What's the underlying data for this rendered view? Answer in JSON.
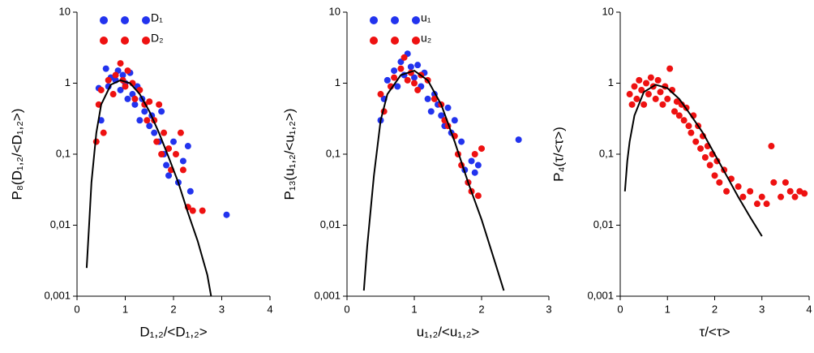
{
  "chart_data": [
    {
      "type": "scatter",
      "xlabel": "D₁,₂/<D₁,₂>",
      "ylabel": "P₈(D₁,₂/<D₁,₂>)",
      "xlim": [
        0,
        4
      ],
      "xticks": [
        0,
        1,
        2,
        3,
        4
      ],
      "ylim": [
        0.001,
        10
      ],
      "ylog": true,
      "yticks": [
        {
          "value": 0.001,
          "label": "0,001"
        },
        {
          "value": 0.01,
          "label": "0,01"
        },
        {
          "value": 0.1,
          "label": "0,1"
        },
        1,
        10
      ],
      "legend": "upper left",
      "series": [
        {
          "name": "D₁",
          "color": "#2233ee",
          "x": [
            0.45,
            0.5,
            0.6,
            0.65,
            0.7,
            0.8,
            0.85,
            0.9,
            0.95,
            1.0,
            1.05,
            1.1,
            1.15,
            1.2,
            1.25,
            1.3,
            1.35,
            1.4,
            1.5,
            1.55,
            1.6,
            1.7,
            1.75,
            1.8,
            1.85,
            1.9,
            2.0,
            2.1,
            2.2,
            2.3,
            2.35,
            3.1
          ],
          "values": [
            0.85,
            0.3,
            1.6,
            0.9,
            1.2,
            1.1,
            1.5,
            0.8,
            1.3,
            1.0,
            0.6,
            1.4,
            0.7,
            0.5,
            0.9,
            0.3,
            0.6,
            0.4,
            0.25,
            0.35,
            0.2,
            0.15,
            0.4,
            0.1,
            0.07,
            0.05,
            0.15,
            0.04,
            0.08,
            0.13,
            0.03,
            0.014
          ]
        },
        {
          "name": "D₂",
          "color": "#ee1111",
          "x": [
            0.4,
            0.45,
            0.5,
            0.55,
            0.65,
            0.75,
            0.8,
            0.9,
            0.95,
            1.0,
            1.05,
            1.15,
            1.2,
            1.3,
            1.4,
            1.45,
            1.5,
            1.6,
            1.65,
            1.7,
            1.75,
            1.8,
            1.9,
            1.95,
            2.05,
            2.15,
            2.2,
            2.3,
            2.4,
            2.6
          ],
          "values": [
            0.15,
            0.5,
            0.8,
            0.2,
            1.1,
            0.7,
            1.3,
            1.9,
            1.1,
            0.9,
            1.5,
            1.0,
            0.6,
            0.8,
            0.5,
            0.3,
            0.55,
            0.3,
            0.15,
            0.5,
            0.1,
            0.2,
            0.12,
            0.06,
            0.1,
            0.2,
            0.06,
            0.018,
            0.016,
            0.016
          ]
        },
        {
          "type": "line",
          "color": "#000000",
          "x": [
            0.2,
            0.25,
            0.3,
            0.4,
            0.5,
            0.7,
            0.9,
            1.1,
            1.3,
            1.5,
            1.7,
            1.9,
            2.1,
            2.3,
            2.5,
            2.7,
            2.78
          ],
          "values": [
            0.0025,
            0.01,
            0.04,
            0.2,
            0.5,
            0.95,
            1.1,
            1.0,
            0.7,
            0.4,
            0.2,
            0.09,
            0.04,
            0.015,
            0.006,
            0.002,
            0.001
          ]
        }
      ]
    },
    {
      "type": "scatter",
      "xlabel": "u₁,₂/<u₁,₂>",
      "ylabel": "P₁₃(u₁,₂/<u₁,₂>)",
      "xlim": [
        0,
        3
      ],
      "xticks": [
        0,
        1,
        2,
        3
      ],
      "ylim": [
        0.001,
        10
      ],
      "ylog": true,
      "yticks": [
        {
          "value": 0.001,
          "label": "0,001"
        },
        {
          "value": 0.01,
          "label": "0,01"
        },
        {
          "value": 0.1,
          "label": "0,1"
        },
        1,
        10
      ],
      "legend": "upper left",
      "series": [
        {
          "name": "u₁",
          "color": "#2233ee",
          "x": [
            0.5,
            0.55,
            0.6,
            0.7,
            0.75,
            0.8,
            0.85,
            0.9,
            0.95,
            1.0,
            1.05,
            1.1,
            1.15,
            1.2,
            1.25,
            1.3,
            1.35,
            1.4,
            1.45,
            1.5,
            1.55,
            1.6,
            1.7,
            1.75,
            1.8,
            1.85,
            1.9,
            1.95,
            2.55
          ],
          "values": [
            0.3,
            0.6,
            1.1,
            1.5,
            0.9,
            2.0,
            1.3,
            2.6,
            1.7,
            1.2,
            1.8,
            0.9,
            1.4,
            0.6,
            0.4,
            0.7,
            0.5,
            0.35,
            0.25,
            0.45,
            0.2,
            0.3,
            0.15,
            0.06,
            0.04,
            0.08,
            0.055,
            0.07,
            0.16
          ]
        },
        {
          "name": "u₂",
          "color": "#ee1111",
          "x": [
            0.5,
            0.55,
            0.65,
            0.7,
            0.8,
            0.85,
            0.9,
            0.95,
            1.0,
            1.05,
            1.1,
            1.2,
            1.3,
            1.4,
            1.45,
            1.5,
            1.6,
            1.65,
            1.7,
            1.8,
            1.85,
            1.9,
            2.0,
            1.95
          ],
          "values": [
            0.7,
            0.4,
            0.9,
            1.2,
            1.6,
            2.3,
            1.1,
            1.4,
            1.0,
            0.8,
            1.3,
            1.1,
            0.6,
            0.5,
            0.3,
            0.25,
            0.18,
            0.1,
            0.07,
            0.04,
            0.03,
            0.1,
            0.12,
            0.026
          ]
        },
        {
          "type": "line",
          "color": "#000000",
          "x": [
            0.25,
            0.3,
            0.4,
            0.5,
            0.6,
            0.8,
            1.0,
            1.2,
            1.4,
            1.6,
            1.8,
            2.0,
            2.2,
            2.33
          ],
          "values": [
            0.0012,
            0.005,
            0.05,
            0.3,
            0.7,
            1.3,
            1.5,
            1.1,
            0.5,
            0.15,
            0.04,
            0.012,
            0.003,
            0.0012
          ]
        }
      ]
    },
    {
      "type": "scatter",
      "xlabel": "τ/<τ>",
      "ylabel": "P₄(τ/<τ>)",
      "xlim": [
        0,
        4
      ],
      "xticks": [
        0,
        1,
        2,
        3,
        4
      ],
      "ylim": [
        0.001,
        10
      ],
      "ylog": true,
      "yticks": [
        {
          "value": 0.001,
          "label": "0,001"
        },
        {
          "value": 0.01,
          "label": "0,01"
        },
        {
          "value": 0.1,
          "label": "0,1"
        },
        1,
        10
      ],
      "series": [
        {
          "color": "#ee1111",
          "x": [
            0.2,
            0.25,
            0.3,
            0.35,
            0.4,
            0.45,
            0.5,
            0.55,
            0.6,
            0.65,
            0.7,
            0.75,
            0.8,
            0.85,
            0.9,
            0.95,
            1.0,
            1.05,
            1.1,
            1.15,
            1.2,
            1.25,
            1.3,
            1.35,
            1.4,
            1.45,
            1.5,
            1.55,
            1.6,
            1.65,
            1.7,
            1.75,
            1.8,
            1.85,
            1.9,
            1.95,
            2.0,
            2.05,
            2.1,
            2.2,
            2.25,
            2.35,
            2.5,
            2.6,
            2.75,
            2.9,
            3.0,
            3.1,
            3.2,
            3.25,
            3.4,
            3.5,
            3.6,
            3.7,
            3.8,
            3.9
          ],
          "values": [
            0.7,
            0.5,
            0.9,
            0.6,
            1.1,
            0.8,
            0.5,
            1.0,
            0.7,
            1.2,
            0.9,
            0.6,
            1.1,
            0.75,
            0.5,
            0.9,
            0.6,
            1.6,
            0.8,
            0.4,
            0.55,
            0.35,
            0.5,
            0.3,
            0.45,
            0.25,
            0.2,
            0.35,
            0.15,
            0.25,
            0.12,
            0.18,
            0.09,
            0.13,
            0.07,
            0.1,
            0.05,
            0.08,
            0.04,
            0.06,
            0.03,
            0.045,
            0.035,
            0.025,
            0.03,
            0.02,
            0.025,
            0.02,
            0.13,
            0.04,
            0.025,
            0.04,
            0.03,
            0.025,
            0.03,
            0.028
          ]
        },
        {
          "type": "line",
          "color": "#000000",
          "x": [
            0.1,
            0.15,
            0.2,
            0.3,
            0.5,
            0.75,
            1.0,
            1.25,
            1.5,
            1.75,
            2.0,
            2.25,
            2.5,
            2.75,
            3.0
          ],
          "values": [
            0.03,
            0.08,
            0.15,
            0.35,
            0.75,
            0.95,
            0.85,
            0.6,
            0.35,
            0.2,
            0.1,
            0.05,
            0.025,
            0.013,
            0.007
          ]
        }
      ]
    }
  ]
}
